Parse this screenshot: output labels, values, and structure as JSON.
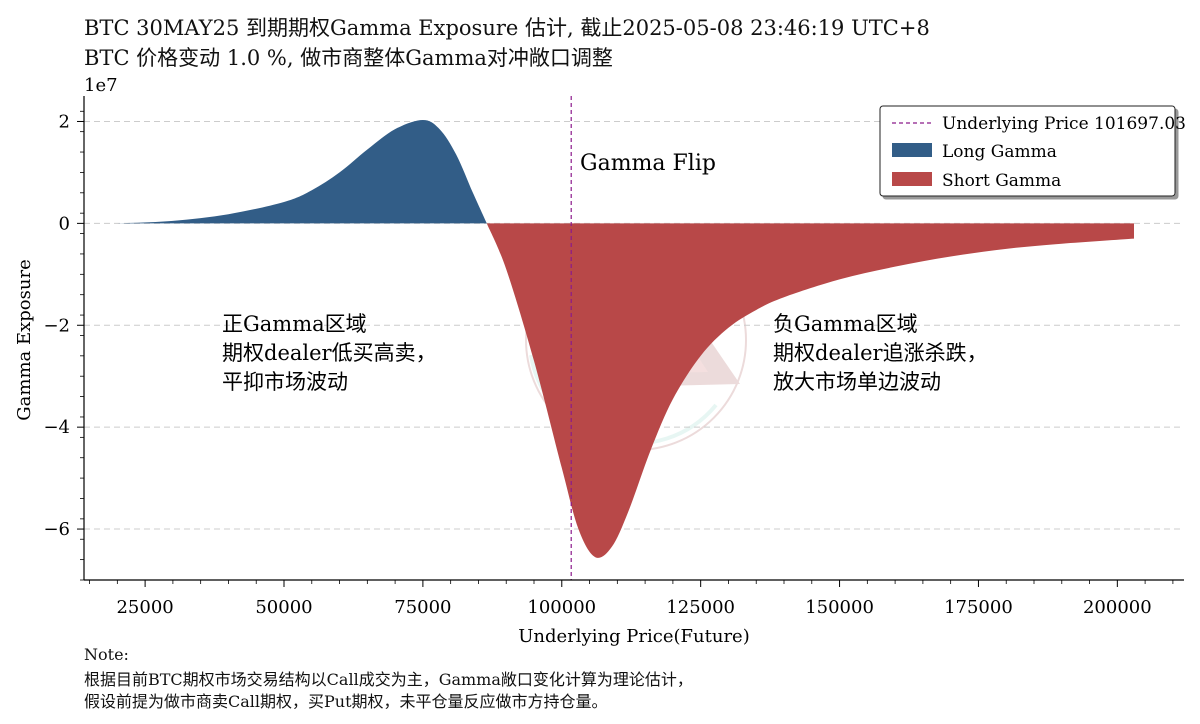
{
  "title_line1": "BTC 30MAY25 到期期权Gamma Exposure 估计, 截止2025-05-08 23:46:19 UTC+8",
  "title_line2": "BTC 价格变动 1.0 %, 做市商整体Gamma对冲敞口调整",
  "note": {
    "heading": "Note:",
    "line1": "根据目前BTC期权市场交易结构以Call成交为主，Gamma敞口变化计算为理论估计，",
    "line2": "假设前提为做市商卖Call期权，买Put期权，未平仓量反应做市方持仓量。"
  },
  "colors": {
    "long": "#325d87",
    "short": "#b84848",
    "underlying_line": "#8b1a8b",
    "grid": "#cccccc"
  },
  "chart_data": {
    "type": "area",
    "xlabel": "Underlying Price(Future)",
    "ylabel": "Gamma Exposure",
    "y_scale_label": "1e7",
    "xlim": [
      14000,
      212000
    ],
    "ylim": [
      -7.0,
      2.5
    ],
    "x_ticks": [
      25000,
      50000,
      75000,
      100000,
      125000,
      150000,
      175000,
      200000
    ],
    "y_ticks": [
      2,
      0,
      -2,
      -4,
      -6
    ],
    "y_tick_labels": [
      "2",
      "0",
      "−2",
      "−4",
      "−6"
    ],
    "grid": "horizontal dashed",
    "legend_position": "top-right",
    "series": [
      {
        "name": "Long Gamma",
        "x": [
          20000,
          30000,
          40000,
          50000,
          55000,
          60000,
          65000,
          70000,
          75000,
          78000,
          81000,
          84000,
          86500
        ],
        "y": [
          0.0,
          0.05,
          0.18,
          0.42,
          0.65,
          1.0,
          1.45,
          1.85,
          2.03,
          1.85,
          1.35,
          0.6,
          0.0
        ]
      },
      {
        "name": "Short Gamma",
        "x": [
          86500,
          90000,
          95000,
          100000,
          103000,
          106000,
          109000,
          112000,
          116000,
          120000,
          125000,
          130000,
          135000,
          140000,
          150000,
          160000,
          170000,
          180000,
          190000,
          203000
        ],
        "y": [
          0.0,
          -0.9,
          -2.7,
          -4.8,
          -6.0,
          -6.55,
          -6.35,
          -5.65,
          -4.45,
          -3.45,
          -2.6,
          -2.05,
          -1.7,
          -1.45,
          -1.1,
          -0.85,
          -0.65,
          -0.5,
          -0.4,
          -0.3
        ]
      }
    ],
    "underlying_price": 101697.03,
    "annotations": {
      "flip": "Gamma Flip",
      "positive_title": "正Gamma区域",
      "positive_line1": "期权dealer低买高卖，",
      "positive_line2": "平抑市场波动",
      "negative_title": "负Gamma区域",
      "negative_line1": "期权dealer追涨杀跌，",
      "negative_line2": "放大市场单边波动"
    },
    "legend": {
      "underlying": "Underlying Price 101697.03",
      "long": "Long Gamma",
      "short": "Short Gamma"
    }
  }
}
